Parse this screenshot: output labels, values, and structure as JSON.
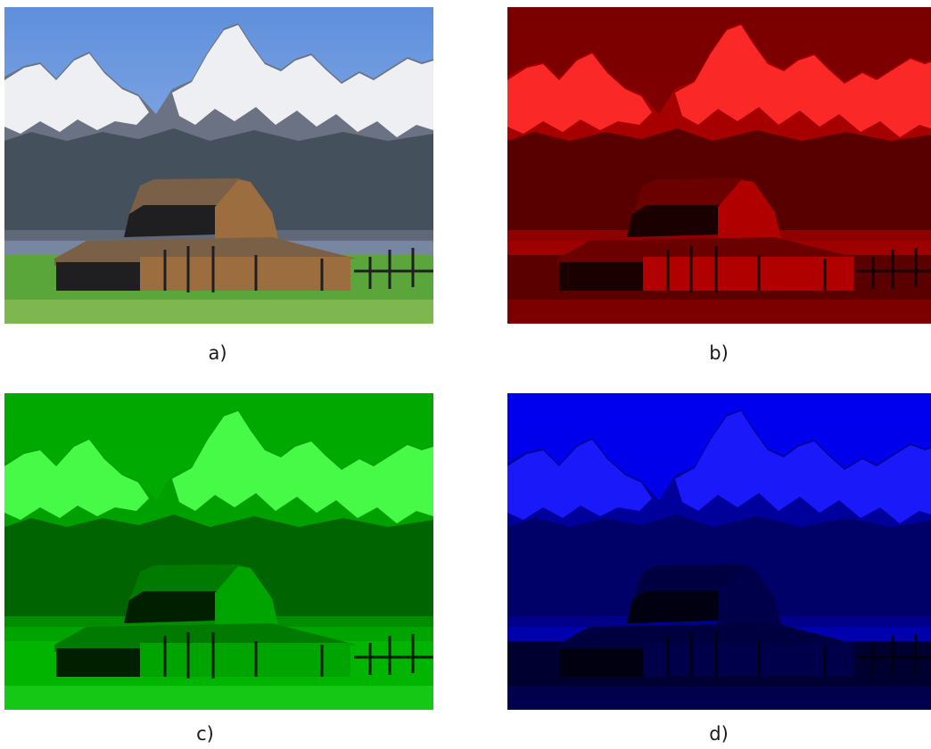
{
  "panels": [
    {
      "id": "a",
      "caption": "a)",
      "channel": "original",
      "colors": {
        "sky_top": "#5f8fdc",
        "sky_bottom": "#a9c4ea",
        "snow": "#f4f6f8",
        "rock": "#6a7283",
        "forest": "#3d4a55",
        "roof": "#7a6046",
        "wall": "#9c6e3f",
        "shadow": "#1f1f22",
        "grass": "#5aa63a",
        "grass_light": "#8dbf5a"
      }
    },
    {
      "id": "b",
      "caption": "b)",
      "channel": "red",
      "colors": {
        "sky_top": "#7a0000",
        "sky_bottom": "#8a0000",
        "snow": "#ff2a2a",
        "rock": "#a60000",
        "forest": "#4a0000",
        "roof": "#6a0000",
        "wall": "#b00000",
        "shadow": "#1a0000",
        "grass": "#5a0000",
        "grass_light": "#8a0000"
      }
    },
    {
      "id": "c",
      "caption": "c)",
      "channel": "green",
      "colors": {
        "sky_top": "#00a800",
        "sky_bottom": "#00b000",
        "snow": "#4cff4c",
        "rock": "#00a000",
        "forest": "#005a00",
        "roof": "#007a00",
        "wall": "#00a400",
        "shadow": "#002000",
        "grass": "#00b400",
        "grass_light": "#20d020"
      }
    },
    {
      "id": "d",
      "caption": "d)",
      "channel": "blue",
      "colors": {
        "sky_top": "#0000f0",
        "sky_bottom": "#0000d8",
        "snow": "#1a1aff",
        "rock": "#00009a",
        "forest": "#000060",
        "roof": "#000040",
        "wall": "#00004a",
        "shadow": "#000010",
        "grass": "#000030",
        "grass_light": "#00005a"
      }
    }
  ]
}
